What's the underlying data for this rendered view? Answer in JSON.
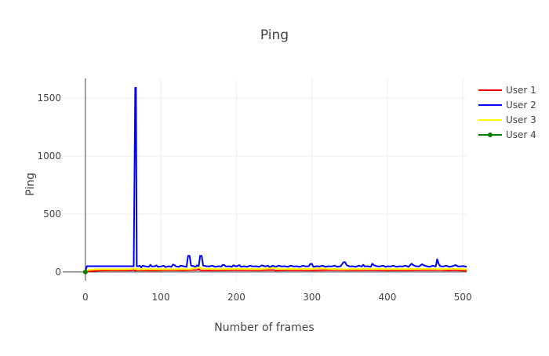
{
  "chart_data": {
    "type": "line",
    "title": "Ping",
    "xlabel": "Number of frames",
    "ylabel": "Ping",
    "xlim": [
      -30,
      505
    ],
    "ylim": [
      -75,
      1670
    ],
    "x_ticks": [
      0,
      100,
      200,
      300,
      400,
      500
    ],
    "y_ticks": [
      0,
      500,
      1000,
      1500
    ],
    "grid": true,
    "legend_position": "right",
    "series": [
      {
        "name": "User 1",
        "color": "#ff0000",
        "mode": "line",
        "points": [
          [
            0,
            5
          ],
          [
            20,
            12
          ],
          [
            40,
            15
          ],
          [
            60,
            14
          ],
          [
            64,
            18
          ],
          [
            66,
            10
          ],
          [
            68,
            15
          ],
          [
            90,
            12
          ],
          [
            110,
            16
          ],
          [
            130,
            14
          ],
          [
            148,
            18
          ],
          [
            150,
            25
          ],
          [
            152,
            15
          ],
          [
            170,
            14
          ],
          [
            200,
            16
          ],
          [
            230,
            15
          ],
          [
            250,
            17
          ],
          [
            252,
            12
          ],
          [
            270,
            16
          ],
          [
            300,
            14
          ],
          [
            330,
            17
          ],
          [
            350,
            15
          ],
          [
            380,
            16
          ],
          [
            400,
            14
          ],
          [
            430,
            15
          ],
          [
            450,
            17
          ],
          [
            470,
            16
          ],
          [
            480,
            14
          ],
          [
            490,
            16
          ],
          [
            500,
            12
          ],
          [
            505,
            10
          ]
        ]
      },
      {
        "name": "User 2",
        "color": "#0000ff",
        "mode": "line",
        "points": [
          [
            0,
            10
          ],
          [
            2,
            50
          ],
          [
            10,
            50
          ],
          [
            20,
            50
          ],
          [
            30,
            50
          ],
          [
            40,
            50
          ],
          [
            50,
            50
          ],
          [
            60,
            50
          ],
          [
            64,
            50
          ],
          [
            66,
            1590
          ],
          [
            67,
            1590
          ],
          [
            68,
            50
          ],
          [
            70,
            50
          ],
          [
            72,
            55
          ],
          [
            74,
            40
          ],
          [
            76,
            55
          ],
          [
            80,
            48
          ],
          [
            84,
            45
          ],
          [
            86,
            62
          ],
          [
            88,
            48
          ],
          [
            92,
            50
          ],
          [
            94,
            58
          ],
          [
            96,
            45
          ],
          [
            100,
            48
          ],
          [
            104,
            55
          ],
          [
            106,
            42
          ],
          [
            110,
            50
          ],
          [
            114,
            45
          ],
          [
            116,
            65
          ],
          [
            118,
            60
          ],
          [
            120,
            48
          ],
          [
            124,
            45
          ],
          [
            126,
            55
          ],
          [
            130,
            50
          ],
          [
            134,
            45
          ],
          [
            136,
            140
          ],
          [
            138,
            140
          ],
          [
            140,
            55
          ],
          [
            144,
            50
          ],
          [
            146,
            45
          ],
          [
            148,
            58
          ],
          [
            150,
            48
          ],
          [
            152,
            140
          ],
          [
            154,
            140
          ],
          [
            156,
            55
          ],
          [
            160,
            50
          ],
          [
            164,
            48
          ],
          [
            168,
            55
          ],
          [
            172,
            45
          ],
          [
            176,
            50
          ],
          [
            180,
            48
          ],
          [
            182,
            62
          ],
          [
            184,
            60
          ],
          [
            186,
            48
          ],
          [
            190,
            50
          ],
          [
            194,
            45
          ],
          [
            196,
            58
          ],
          [
            200,
            48
          ],
          [
            204,
            60
          ],
          [
            206,
            45
          ],
          [
            210,
            50
          ],
          [
            214,
            45
          ],
          [
            218,
            55
          ],
          [
            222,
            48
          ],
          [
            226,
            50
          ],
          [
            230,
            45
          ],
          [
            234,
            58
          ],
          [
            238,
            48
          ],
          [
            242,
            55
          ],
          [
            244,
            40
          ],
          [
            248,
            55
          ],
          [
            250,
            50
          ],
          [
            252,
            45
          ],
          [
            256,
            55
          ],
          [
            260,
            48
          ],
          [
            264,
            50
          ],
          [
            268,
            45
          ],
          [
            272,
            55
          ],
          [
            276,
            48
          ],
          [
            280,
            50
          ],
          [
            284,
            45
          ],
          [
            288,
            55
          ],
          [
            292,
            48
          ],
          [
            296,
            50
          ],
          [
            298,
            70
          ],
          [
            300,
            70
          ],
          [
            302,
            45
          ],
          [
            306,
            50
          ],
          [
            310,
            48
          ],
          [
            314,
            55
          ],
          [
            318,
            45
          ],
          [
            322,
            50
          ],
          [
            326,
            48
          ],
          [
            330,
            55
          ],
          [
            334,
            45
          ],
          [
            338,
            50
          ],
          [
            342,
            85
          ],
          [
            344,
            85
          ],
          [
            346,
            60
          ],
          [
            350,
            48
          ],
          [
            354,
            50
          ],
          [
            358,
            45
          ],
          [
            362,
            55
          ],
          [
            366,
            48
          ],
          [
            368,
            62
          ],
          [
            370,
            48
          ],
          [
            374,
            50
          ],
          [
            378,
            45
          ],
          [
            380,
            72
          ],
          [
            382,
            60
          ],
          [
            386,
            50
          ],
          [
            390,
            48
          ],
          [
            394,
            55
          ],
          [
            398,
            45
          ],
          [
            400,
            50
          ],
          [
            404,
            48
          ],
          [
            408,
            55
          ],
          [
            412,
            45
          ],
          [
            416,
            50
          ],
          [
            420,
            48
          ],
          [
            424,
            55
          ],
          [
            428,
            45
          ],
          [
            432,
            72
          ],
          [
            434,
            60
          ],
          [
            438,
            50
          ],
          [
            442,
            48
          ],
          [
            446,
            68
          ],
          [
            448,
            58
          ],
          [
            452,
            50
          ],
          [
            456,
            45
          ],
          [
            460,
            55
          ],
          [
            464,
            48
          ],
          [
            466,
            110
          ],
          [
            468,
            70
          ],
          [
            470,
            50
          ],
          [
            474,
            48
          ],
          [
            478,
            55
          ],
          [
            482,
            45
          ],
          [
            486,
            50
          ],
          [
            490,
            60
          ],
          [
            494,
            48
          ],
          [
            498,
            50
          ],
          [
            500,
            52
          ],
          [
            505,
            45
          ]
        ]
      },
      {
        "name": "User 3",
        "color": "#ffff00",
        "mode": "line",
        "points": [
          [
            0,
            5
          ],
          [
            4,
            20
          ],
          [
            20,
            25
          ],
          [
            40,
            24
          ],
          [
            60,
            26
          ],
          [
            66,
            30
          ],
          [
            68,
            22
          ],
          [
            80,
            25
          ],
          [
            100,
            24
          ],
          [
            120,
            26
          ],
          [
            140,
            25
          ],
          [
            150,
            40
          ],
          [
            154,
            30
          ],
          [
            170,
            25
          ],
          [
            200,
            27
          ],
          [
            230,
            25
          ],
          [
            252,
            35
          ],
          [
            256,
            25
          ],
          [
            270,
            27
          ],
          [
            300,
            25
          ],
          [
            304,
            32
          ],
          [
            330,
            26
          ],
          [
            350,
            25
          ],
          [
            380,
            27
          ],
          [
            400,
            25
          ],
          [
            430,
            26
          ],
          [
            450,
            28
          ],
          [
            470,
            25
          ],
          [
            490,
            28
          ],
          [
            500,
            24
          ],
          [
            505,
            24
          ]
        ]
      },
      {
        "name": "User 4",
        "color": "#008000",
        "mode": "lines+markers",
        "points": [
          [
            0,
            0
          ]
        ]
      }
    ]
  }
}
